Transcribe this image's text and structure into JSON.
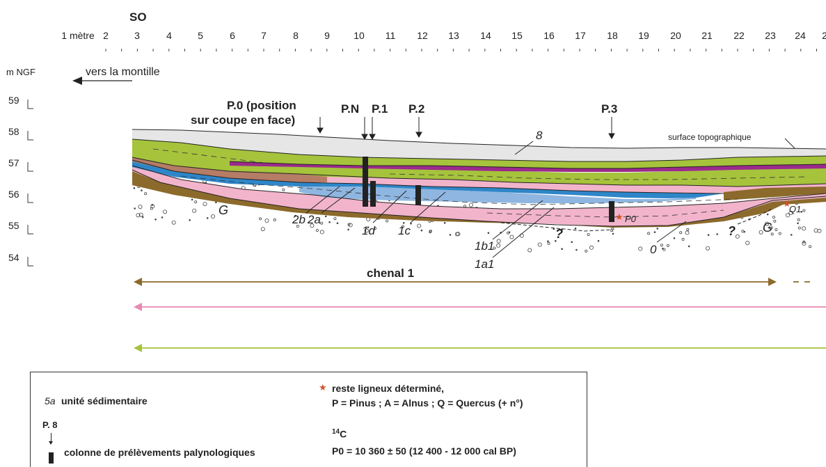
{
  "header": {
    "orientation": "SO"
  },
  "distance_ticks": [
    "1 mètre",
    "2",
    "3",
    "4",
    "5",
    "6",
    "7",
    "8",
    "9",
    "10",
    "11",
    "12",
    "13",
    "14",
    "15",
    "16",
    "17",
    "18",
    "19",
    "20",
    "21",
    "22",
    "23",
    "24",
    "2"
  ],
  "elevation": {
    "unit": "m NGF",
    "ticks": [
      "59",
      "58",
      "57",
      "56",
      "55",
      "54"
    ]
  },
  "direction_label": "vers la montille",
  "profiles": {
    "p0": "P.0 (position",
    "p0_line2": "sur coupe en face)",
    "pn": "P.N",
    "p1": "P.1",
    "p2": "P.2",
    "p3": "P.3"
  },
  "surface_label": "surface topographique",
  "units": {
    "u8": "8",
    "u2b": "2b",
    "u2a": "2a",
    "u1d": "1d",
    "u1c": "1c",
    "u1b1": "1b1",
    "u1a1": "1a1",
    "u0": "0",
    "g1": "G",
    "g2": "G",
    "q1": "?",
    "q2": "?",
    "p0_sample": "P0",
    "q1_sample": "Q1"
  },
  "channel_label": "chenal 1",
  "colors": {
    "green": "#a6c33c",
    "purple": "#9b2a8c",
    "pink": "#f2b4cb",
    "blue": "#2e86c8",
    "lightblue": "#8fb6e0",
    "brown": "#8c6a2b",
    "terracotta": "#b57c66",
    "gray": "#e6e6e6",
    "arrow_brown": "#8c6a2b",
    "arrow_pink": "#e58ab3",
    "arrow_green": "#a6c33c",
    "star": "#d0502a"
  },
  "legend": {
    "unit_example": "5a",
    "unit_label": "unité sédimentaire",
    "column_example": "P. 8",
    "column_label": "colonne de prélèvements palynologiques",
    "wood_label": "reste ligneux déterminé,",
    "wood_codes": "P = Pinus ; A = Alnus ; Q = Quercus (+ n°)",
    "c14_label": "14C",
    "c14_value": "P0 = 10 360 ± 50 (12 400 - 12 000 cal BP)"
  }
}
